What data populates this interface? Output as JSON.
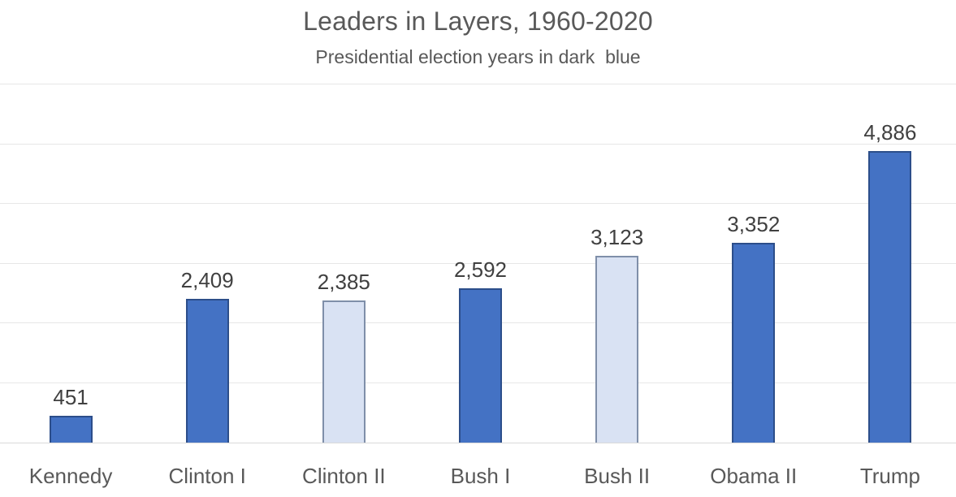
{
  "chart": {
    "title": "Leaders in Layers, 1960-2020",
    "subtitle": "Presidential election years in dark  blue"
  },
  "chart_data": {
    "type": "bar",
    "title": "Leaders in Layers, 1960-2020",
    "subtitle": "Presidential election years in dark  blue",
    "categories": [
      "Kennedy",
      "Clinton I",
      "Clinton II",
      "Bush I",
      "Bush II",
      "Obama II",
      "Trump"
    ],
    "values": [
      451,
      2409,
      2385,
      2592,
      3123,
      3352,
      4886
    ],
    "value_labels": [
      "451",
      "2,409",
      "2,385",
      "2,592",
      "3,123",
      "3,352",
      "4,886"
    ],
    "bar_styles": [
      "dark",
      "dark",
      "light",
      "dark",
      "light",
      "dark",
      "dark"
    ],
    "colors": {
      "dark_fill": "#4472C4",
      "dark_border": "#2C4E8A",
      "light_fill": "#D9E2F3",
      "light_border": "#7F8FA9",
      "gridline": "#E7E7E7",
      "axis_line": "#D9D9D9",
      "title_text": "#595959",
      "value_text": "#404040",
      "category_text": "#595959"
    },
    "xlabel": "",
    "ylabel": "",
    "ylim": [
      0,
      6000
    ],
    "gridline_step": 1000,
    "grid": true,
    "legend": "none",
    "data_labels": "above bars",
    "y_axis_tick_labels": "none (hidden)"
  }
}
